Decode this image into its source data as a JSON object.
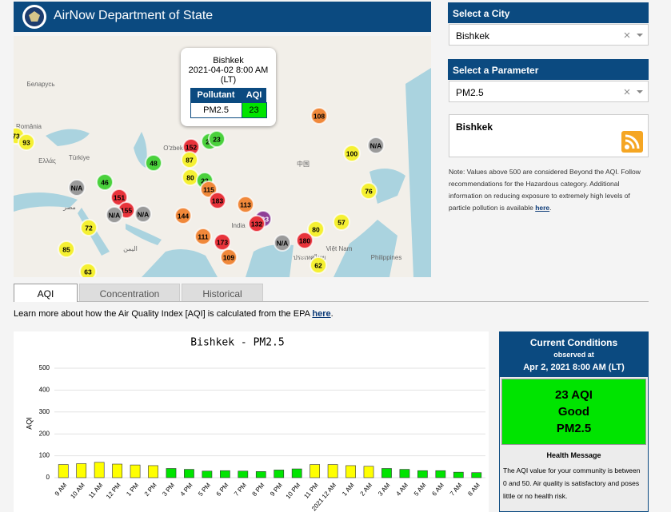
{
  "header": {
    "title": "AirNow Department of State"
  },
  "map": {
    "labels": [
      "Беларусь",
      "România",
      "Türkiye",
      "Ελλάς",
      "O'zbekiston",
      "中国",
      "India",
      "Việt Nam",
      "Philippines",
      "ประเทศไทย",
      "مصر",
      "اليمن"
    ],
    "markers": [
      {
        "label": 73,
        "color": "#f5f032"
      },
      {
        "label": 93,
        "color": "#f5f032"
      },
      {
        "label": 108,
        "color": "#f0883a"
      },
      {
        "label": 152,
        "color": "#e8333b"
      },
      {
        "label": 23,
        "color": "#4ad13c"
      },
      {
        "label": 23,
        "color": "#4ad13c"
      },
      {
        "label": 87,
        "color": "#f5f032"
      },
      {
        "label": 48,
        "color": "#4ad13c"
      },
      {
        "label": 100,
        "color": "#f5f032"
      },
      {
        "label": "N/A",
        "color": "#9a9a9a"
      },
      {
        "label": 46,
        "color": "#4ad13c"
      },
      {
        "label": "N/A",
        "color": "#9a9a9a"
      },
      {
        "label": 80,
        "color": "#f5f032"
      },
      {
        "label": 23,
        "color": "#4ad13c"
      },
      {
        "label": 115,
        "color": "#f0883a"
      },
      {
        "label": 76,
        "color": "#f5f032"
      },
      {
        "label": 151,
        "color": "#e8333b"
      },
      {
        "label": 183,
        "color": "#e8333b"
      },
      {
        "label": 113,
        "color": "#f0883a"
      },
      {
        "label": 155,
        "color": "#e8333b"
      },
      {
        "label": "N/A",
        "color": "#9a9a9a"
      },
      {
        "label": "N/A",
        "color": "#9a9a9a"
      },
      {
        "label": 144,
        "color": "#f0883a"
      },
      {
        "label": 223,
        "color": "#8f3f97"
      },
      {
        "label": 132,
        "color": "#e8333b"
      },
      {
        "label": 57,
        "color": "#f5f032"
      },
      {
        "label": 72,
        "color": "#f5f032"
      },
      {
        "label": 80,
        "color": "#f5f032"
      },
      {
        "label": 111,
        "color": "#f0883a"
      },
      {
        "label": "N/A",
        "color": "#9a9a9a"
      },
      {
        "label": 180,
        "color": "#e8333b"
      },
      {
        "label": 173,
        "color": "#e8333b"
      },
      {
        "label": 85,
        "color": "#f5f032"
      },
      {
        "label": 109,
        "color": "#f0883a"
      },
      {
        "label": 62,
        "color": "#f5f032"
      },
      {
        "label": 63,
        "color": "#f5f032"
      }
    ],
    "popup": {
      "city": "Bishkek",
      "time": "2021-04-02 8:00 AM (LT)",
      "columns": [
        "Pollutant",
        "AQI"
      ],
      "row": [
        "PM2.5",
        23
      ]
    }
  },
  "sidebar": {
    "city": {
      "heading": "Select a City",
      "value": "Bishkek"
    },
    "parameter": {
      "heading": "Select a Parameter",
      "value": "PM2.5"
    },
    "feed_title": "Bishkek",
    "note": "Note: Values above 500 are considered Beyond the AQI. Follow recommendations for the Hazardous category. Additional information on reducing exposure to extremely high levels of particle pollution is available ",
    "note_link": "here",
    "note_end": "."
  },
  "tabs": [
    "AQI",
    "Concentration",
    "Historical"
  ],
  "learn_more": {
    "text": "Learn more about how the Air Quality Index [AQI] is calculated from the EPA ",
    "link": "here",
    "end": "."
  },
  "chart_data": {
    "type": "bar",
    "title": "Bishkek - PM2.5",
    "y_label": "AQI",
    "categories": [
      "9 AM",
      "10 AM",
      "11 AM",
      "12 PM",
      "1 PM",
      "2 PM",
      "3 PM",
      "4 PM",
      "5 PM",
      "6 PM",
      "7 PM",
      "8 PM",
      "9 PM",
      "10 PM",
      "11 PM",
      "2021 12 AM",
      "1 AM",
      "2 AM",
      "3 AM",
      "4 AM",
      "5 AM",
      "6 AM",
      "7 AM",
      "8 AM"
    ],
    "values": [
      60,
      64,
      70,
      62,
      58,
      55,
      42,
      38,
      30,
      32,
      30,
      28,
      35,
      40,
      60,
      60,
      55,
      52,
      42,
      38,
      32,
      32,
      25,
      23
    ],
    "colors": [
      "#ffff00",
      "#ffff00",
      "#ffff00",
      "#ffff00",
      "#ffff00",
      "#ffff00",
      "#00e400",
      "#00e400",
      "#00e400",
      "#00e400",
      "#00e400",
      "#00e400",
      "#00e400",
      "#00e400",
      "#ffff00",
      "#ffff00",
      "#ffff00",
      "#ffff00",
      "#00e400",
      "#00e400",
      "#00e400",
      "#00e400",
      "#00e400",
      "#00e400"
    ],
    "ylim": [
      0,
      500
    ],
    "yticks": [
      0,
      100,
      200,
      300,
      400,
      500
    ],
    "grid": true
  },
  "current": {
    "title": "Current Conditions",
    "observed": "observed at",
    "time": "Apr 2, 2021 8:00 AM (LT)",
    "aqi": "23 AQI",
    "category": "Good",
    "pollutant": "PM2.5",
    "health_title": "Health Message",
    "health_text": "The AQI value for your community is between 0 and 50. Air quality is satisfactory and poses little or no health risk."
  }
}
